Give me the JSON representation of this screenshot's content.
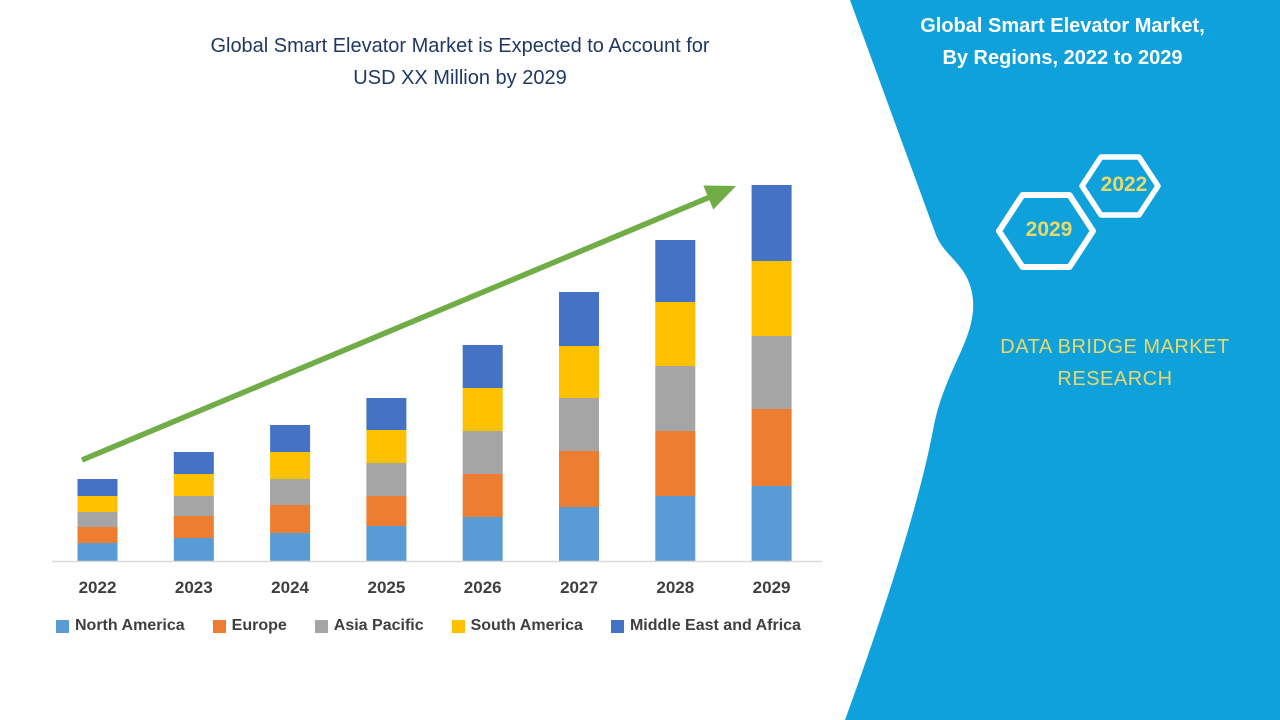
{
  "page": {
    "background": "#ffffff"
  },
  "chart": {
    "title_line1": "Global Smart Elevator Market is Expected to Account for",
    "title_line2": "USD XX Million by 2029",
    "title_color": "#1F3864",
    "axis_color": "#D9D9D9",
    "label_color": "#3F3F3F",
    "trend_arrow_color": "#70AD47"
  },
  "chart_data": {
    "type": "bar",
    "stacked": true,
    "title": "Global Smart Elevator Market is Expected to Account for USD XX Million by 2029",
    "xlabel": "",
    "ylabel": "",
    "units": "relative units (actual values shown as USD XX Million, unlabeled axis)",
    "grid": false,
    "legend_position": "bottom",
    "trend_arrow": true,
    "categories": [
      "2022",
      "2023",
      "2024",
      "2025",
      "2026",
      "2027",
      "2028",
      "2029"
    ],
    "series": [
      {
        "name": "North America",
        "color": "#5B9BD5",
        "values": [
          18,
          23,
          28,
          35,
          44,
          54,
          65,
          75
        ]
      },
      {
        "name": "Europe",
        "color": "#ED7D31",
        "values": [
          16,
          22,
          28,
          30,
          43,
          56,
          65,
          77
        ]
      },
      {
        "name": "Asia Pacific",
        "color": "#A5A5A5",
        "values": [
          15,
          20,
          26,
          33,
          43,
          53,
          65,
          73
        ]
      },
      {
        "name": "South America",
        "color": "#FFC000",
        "values": [
          16,
          22,
          27,
          33,
          43,
          52,
          64,
          75
        ]
      },
      {
        "name": "Middle East and Africa",
        "color": "#4472C4",
        "values": [
          17,
          22,
          27,
          32,
          43,
          54,
          62,
          76
        ]
      }
    ],
    "totals": [
      82,
      109,
      136,
      163,
      216,
      269,
      321,
      376
    ]
  },
  "right_panel": {
    "bg_color": "#0EA1DC",
    "title_line1": "Global Smart Elevator Market,",
    "title_line2": "By Regions, 2022 to 2029",
    "title_color": "#FFFFFF",
    "accent_text_color": "#E8D96A",
    "hexagons": [
      {
        "label": "2022"
      },
      {
        "label": "2029"
      }
    ],
    "brand_line1": "DATA BRIDGE MARKET",
    "brand_line2": "RESEARCH"
  }
}
